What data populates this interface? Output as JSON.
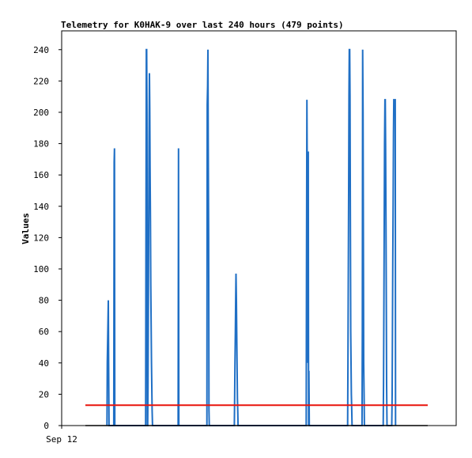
{
  "chart_data": {
    "type": "line",
    "title": "Telemetry for K0HAK-9 over last 240 hours (479 points)",
    "ylabel": "Values",
    "xlabel": "",
    "x_tick_labels": [
      "Sep 12"
    ],
    "ylim": [
      0,
      252
    ],
    "y_ticks": [
      0,
      20,
      40,
      60,
      80,
      100,
      120,
      140,
      160,
      180,
      200,
      220,
      240
    ],
    "grid": false,
    "legend": "none",
    "colors": {
      "series1": "#1f6fc5",
      "series2": "#e8140c",
      "series3": "#000000",
      "frame": "#000000"
    },
    "series": [
      {
        "color": "#1f6fc5",
        "x": [
          0.063,
          0.064,
          0.066,
          0.067,
          0.068,
          0.069,
          0.083,
          0.084,
          0.085,
          0.086,
          0.176,
          0.177,
          0.178,
          0.179,
          0.18,
          0.181,
          0.182,
          0.183,
          0.184,
          0.185,
          0.186,
          0.187,
          0.188,
          0.189,
          0.19,
          0.191,
          0.192,
          0.193,
          0.194,
          0.195,
          0.196,
          0.197,
          0.198,
          0.271,
          0.272,
          0.273,
          0.355,
          0.356,
          0.357,
          0.358,
          0.359,
          0.36,
          0.361,
          0.362,
          0.435,
          0.436,
          0.437,
          0.438,
          0.439,
          0.44,
          0.441,
          0.442,
          0.443,
          0.444,
          0.445,
          0.446,
          0.645,
          0.646,
          0.647,
          0.648,
          0.649,
          0.65,
          0.651,
          0.652,
          0.653,
          0.654,
          0.766,
          0.767,
          0.768,
          0.769,
          0.77,
          0.771,
          0.772,
          0.773,
          0.774,
          0.775,
          0.776,
          0.777,
          0.778,
          0.779,
          0.808,
          0.809,
          0.81,
          0.811,
          0.812,
          0.813,
          0.814,
          0.815,
          0.816,
          0.87,
          0.871,
          0.872,
          0.873,
          0.874,
          0.875,
          0.876,
          0.877,
          0.878,
          0.879,
          0.88,
          0.881,
          0.895,
          0.896,
          0.897,
          0.898,
          0.899,
          0.9,
          0.901,
          0.902,
          0.903,
          0.904,
          0.905,
          0.906
        ],
        "y": [
          0,
          40,
          67,
          80,
          40,
          0,
          0,
          168,
          177,
          0,
          0,
          113,
          240,
          240,
          200,
          0,
          0,
          25,
          80,
          130,
          183,
          225,
          203,
          165,
          130,
          90,
          68,
          40,
          25,
          10,
          0,
          0,
          0,
          0,
          177,
          0,
          0,
          205,
          217,
          240,
          180,
          121,
          10,
          0,
          0,
          18,
          40,
          60,
          80,
          97,
          80,
          60,
          40,
          17,
          10,
          0,
          0,
          105,
          208,
          160,
          105,
          40,
          175,
          0,
          35,
          0,
          0,
          40,
          90,
          150,
          210,
          240,
          240,
          210,
          140,
          60,
          40,
          20,
          10,
          0,
          0,
          60,
          240,
          200,
          120,
          40,
          20,
          0,
          0,
          0,
          26,
          80,
          130,
          180,
          208,
          208,
          180,
          130,
          80,
          26,
          0,
          0,
          20,
          62,
          104,
          145,
          187,
          208,
          208,
          208,
          208,
          208,
          0
        ]
      },
      {
        "color": "#e8140c",
        "x": [
          0.0,
          1.0
        ],
        "y": [
          13,
          13
        ]
      },
      {
        "color": "#000000",
        "x": [
          0.0,
          1.0
        ],
        "y": [
          0,
          0
        ]
      }
    ]
  }
}
